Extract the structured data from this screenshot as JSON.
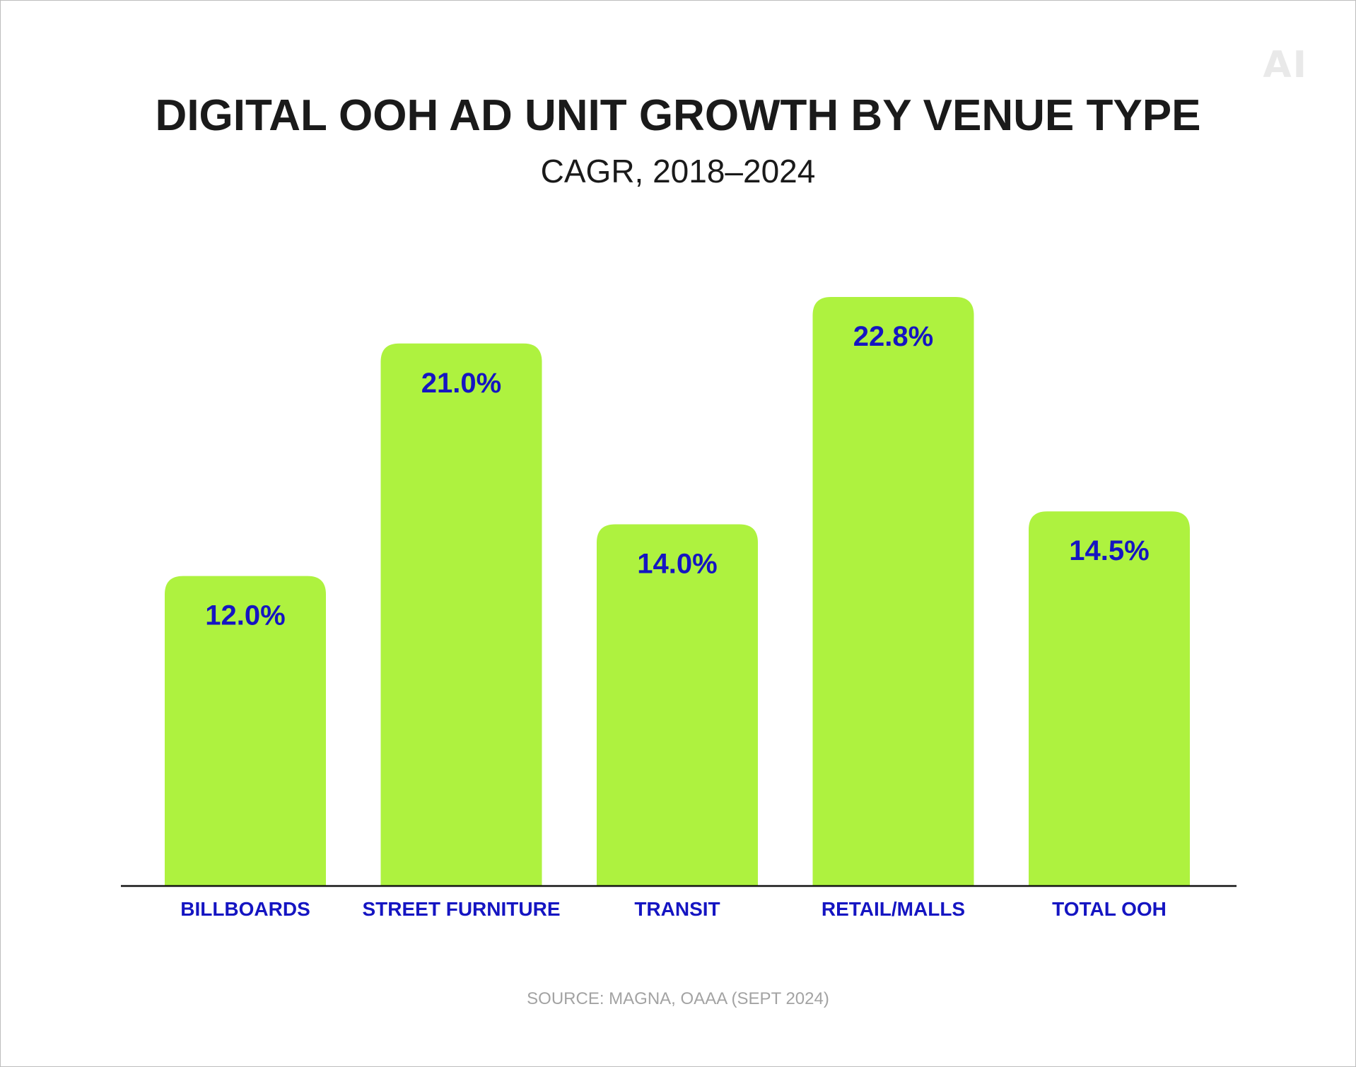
{
  "logo": {
    "text": "AI"
  },
  "chart_data": {
    "type": "bar",
    "title": "DIGITAL OOH AD UNIT GROWTH BY VENUE TYPE",
    "subtitle": "CAGR, 2018–2024",
    "categories": [
      "BILLBOARDS",
      "STREET FURNITURE",
      "TRANSIT",
      "RETAIL/MALLS",
      "TOTAL OOH"
    ],
    "values": [
      12.0,
      21.0,
      14.0,
      22.8,
      14.5
    ],
    "value_labels": [
      "12.0%",
      "21.0%",
      "14.0%",
      "22.8%",
      "14.5%"
    ],
    "ylim": [
      0,
      22.8
    ],
    "grid": false,
    "legend": "none",
    "colors": {
      "bar": "#aef23f",
      "label": "#1515c2",
      "axis": "#111111",
      "title": "#1a1a1a",
      "source": "#a3a3a3"
    }
  },
  "source": "SOURCE: MAGNA, OAAA (SEPT 2024)"
}
